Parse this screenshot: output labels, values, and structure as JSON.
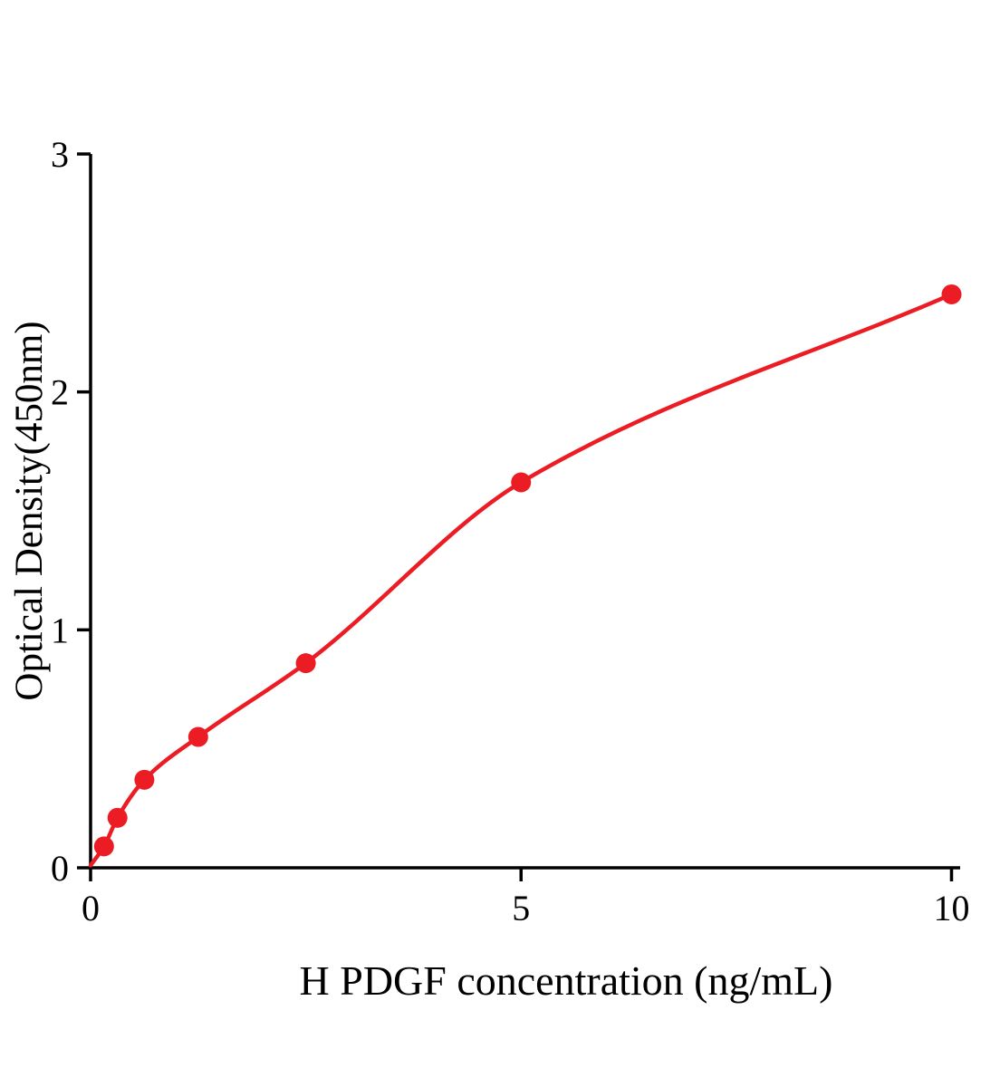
{
  "chart_data": {
    "type": "scatter",
    "title": "",
    "xlabel": "H PDGF concentration (ng/mL)",
    "ylabel": "Optical Density(450nm)",
    "xlim": [
      0,
      10.1
    ],
    "ylim": [
      0,
      3
    ],
    "xticks": [
      0,
      5,
      10
    ],
    "yticks": [
      0,
      1,
      2,
      3
    ],
    "grid": false,
    "legend": "none",
    "marker_color": "#ec1c24",
    "line_color": "#ec1c24",
    "axis_color": "#000000",
    "points": [
      {
        "x": 0.156,
        "y": 0.09
      },
      {
        "x": 0.3125,
        "y": 0.21
      },
      {
        "x": 0.625,
        "y": 0.37
      },
      {
        "x": 1.25,
        "y": 0.55
      },
      {
        "x": 2.5,
        "y": 0.86
      },
      {
        "x": 5,
        "y": 1.62
      },
      {
        "x": 10,
        "y": 2.41
      }
    ],
    "curve_start": {
      "x": 0,
      "y": 0.01
    },
    "curve_fit": "smooth monotone curve through points (saturation/standard curve)"
  }
}
